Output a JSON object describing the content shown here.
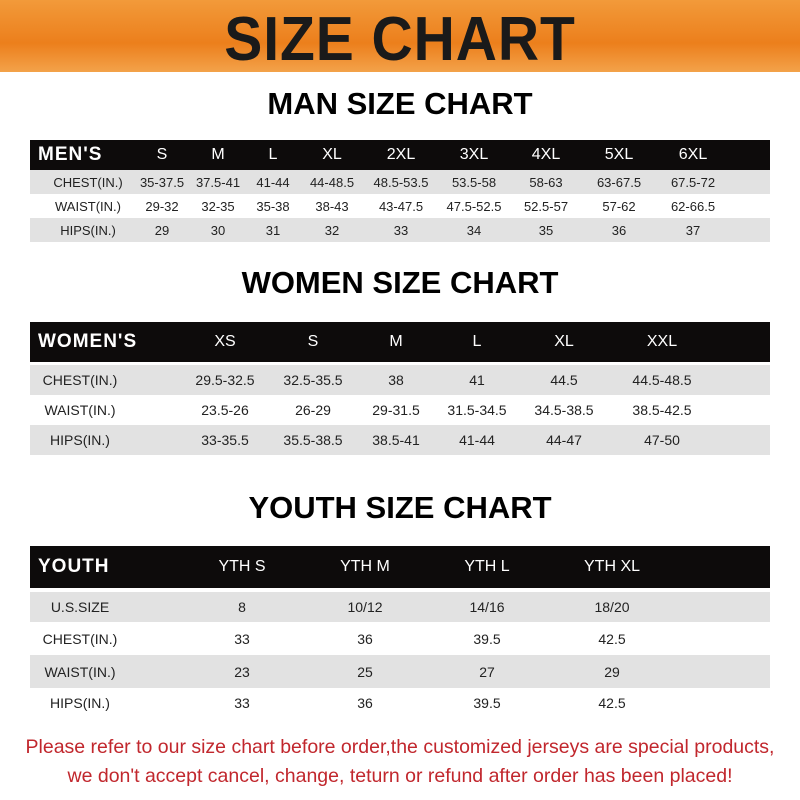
{
  "banner_title": "SIZE CHART",
  "men": {
    "title": "MAN SIZE CHART",
    "header": [
      "MEN'S",
      "S",
      "M",
      "L",
      "XL",
      "2XL",
      "3XL",
      "4XL",
      "5XL",
      "6XL"
    ],
    "rows": [
      [
        "CHEST(IN.)",
        "35-37.5",
        "37.5-41",
        "41-44",
        "44-48.5",
        "48.5-53.5",
        "53.5-58",
        "58-63",
        "63-67.5",
        "67.5-72"
      ],
      [
        "WAIST(IN.)",
        "29-32",
        "32-35",
        "35-38",
        "38-43",
        "43-47.5",
        "47.5-52.5",
        "52.5-57",
        "57-62",
        "62-66.5"
      ],
      [
        "HIPS(IN.)",
        "29",
        "30",
        "31",
        "32",
        "33",
        "34",
        "35",
        "36",
        "37"
      ]
    ]
  },
  "women": {
    "title": "WOMEN SIZE CHART",
    "header": [
      "WOMEN'S",
      "XS",
      "S",
      "M",
      "L",
      "XL",
      "XXL"
    ],
    "rows": [
      [
        "CHEST(IN.)",
        "29.5-32.5",
        "32.5-35.5",
        "38",
        "41",
        "44.5",
        "44.5-48.5"
      ],
      [
        "WAIST(IN.)",
        "23.5-26",
        "26-29",
        "29-31.5",
        "31.5-34.5",
        "34.5-38.5",
        "38.5-42.5"
      ],
      [
        "HIPS(IN.)",
        "33-35.5",
        "35.5-38.5",
        "38.5-41",
        "41-44",
        "44-47",
        "47-50"
      ]
    ]
  },
  "youth": {
    "title": "YOUTH SIZE CHART",
    "header": [
      "YOUTH",
      "YTH S",
      "YTH M",
      "YTH L",
      "YTH XL"
    ],
    "rows": [
      [
        "U.S.SIZE",
        "8",
        "10/12",
        "14/16",
        "18/20"
      ],
      [
        "CHEST(IN.)",
        "33",
        "36",
        "39.5",
        "42.5"
      ],
      [
        "WAIST(IN.)",
        "23",
        "25",
        "27",
        "29"
      ],
      [
        "HIPS(IN.)",
        "33",
        "36",
        "39.5",
        "42.5"
      ]
    ]
  },
  "note": {
    "line1": "Please refer to our size chart before order,the customized jerseys are special products,",
    "line2": "we don't accept cancel, change, teturn or refund after order has been placed!"
  },
  "colors": {
    "banner": "#ec7f1c",
    "header": "#0d0b0b",
    "note": "#c1272d",
    "row_alt": "#e2e2e2"
  }
}
